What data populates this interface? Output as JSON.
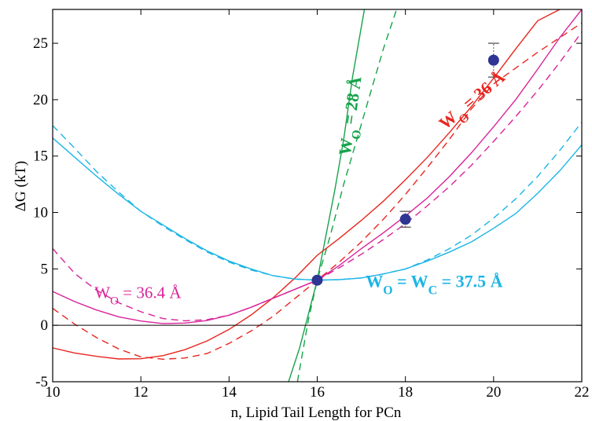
{
  "chart_data": {
    "type": "line",
    "xlabel": "n, Lipid Tail Length for PCn",
    "ylabel": "ΔG  (kT)",
    "xlim": [
      10,
      22
    ],
    "ylim": [
      -5,
      28
    ],
    "xticks": [
      10,
      12,
      14,
      16,
      18,
      20,
      22
    ],
    "yticks": [
      -5,
      0,
      5,
      10,
      15,
      20,
      25
    ],
    "grid": false,
    "reference_line_y": 0,
    "colors": {
      "green": "#16a34a",
      "red": "#e8261f",
      "magenta": "#d9239a",
      "cyan": "#1bb5e6",
      "points": "#2e3593",
      "errorbar": "#555555"
    },
    "series": [
      {
        "color": "green",
        "solid": {
          "x": [
            15.35,
            15.6,
            15.8,
            16.0,
            16.2,
            16.4,
            16.6,
            16.8,
            17.07
          ],
          "y": [
            -5.0,
            -2.0,
            1.0,
            4.0,
            8.0,
            12.0,
            16.5,
            22.0,
            28.0
          ]
        },
        "dashed": {
          "x": [
            15.55,
            15.8,
            16.0,
            16.3,
            16.6,
            16.9,
            17.2,
            17.5,
            17.8
          ],
          "y": [
            -5.0,
            0.5,
            4.0,
            8.0,
            12.5,
            16.5,
            20.5,
            24.5,
            28.0
          ]
        }
      },
      {
        "color": "red",
        "solid": {
          "x": [
            10,
            10.5,
            11,
            11.5,
            12,
            12.5,
            13,
            13.5,
            14,
            14.5,
            15,
            15.5,
            16,
            16.5,
            17,
            17.5,
            18,
            18.5,
            19,
            19.5,
            20,
            20.5,
            21,
            21.5
          ],
          "y": [
            -2.0,
            -2.45,
            -2.75,
            -2.98,
            -2.96,
            -2.69,
            -2.16,
            -1.39,
            -0.36,
            0.92,
            2.44,
            4.21,
            6.21,
            7.7,
            9.3,
            11.0,
            12.9,
            14.9,
            17.1,
            19.4,
            21.9,
            24.5,
            27.0,
            28.0
          ]
        },
        "dashed": {
          "x": [
            10,
            10.5,
            11,
            11.5,
            12,
            12.5,
            13,
            13.5,
            14,
            14.5,
            15,
            15.5,
            16,
            16.5,
            17,
            17.5,
            18,
            18.5,
            19,
            19.5,
            20,
            20.5,
            21,
            21.5,
            22
          ],
          "y": [
            1.5,
            0.1,
            -1.1,
            -2.1,
            -2.8,
            -3.0,
            -2.9,
            -2.5,
            -1.6,
            -0.5,
            0.8,
            2.4,
            4.0,
            5.6,
            7.4,
            9.4,
            11.6,
            14.0,
            16.5,
            19.2,
            21.4,
            22.8,
            24.2,
            25.5,
            26.8
          ]
        }
      },
      {
        "color": "magenta",
        "solid": {
          "x": [
            10,
            10.5,
            11,
            11.5,
            12,
            12.5,
            13,
            13.5,
            14,
            14.5,
            15,
            15.5,
            16,
            16.5,
            17,
            17.5,
            18,
            18.5,
            19,
            19.5,
            20,
            20.5,
            21,
            21.5,
            22
          ],
          "y": [
            3.0,
            2.1,
            1.35,
            0.75,
            0.38,
            0.16,
            0.2,
            0.42,
            0.9,
            1.6,
            2.4,
            3.2,
            4.0,
            5.3,
            6.8,
            8.2,
            9.7,
            11.3,
            13.2,
            15.3,
            17.6,
            20.0,
            22.7,
            25.5,
            28.0
          ]
        },
        "dashed": {
          "x": [
            10,
            10.5,
            11,
            11.5,
            12,
            12.5,
            13,
            13.5,
            14,
            14.5,
            15,
            15.5,
            16,
            16.5,
            17,
            17.5,
            18,
            18.5,
            19,
            19.5,
            20,
            20.5,
            21,
            21.5,
            22
          ],
          "y": [
            6.8,
            4.6,
            3.1,
            2.0,
            1.2,
            0.6,
            0.4,
            0.5,
            0.9,
            1.6,
            2.4,
            3.2,
            4.0,
            5.1,
            6.3,
            7.6,
            9.0,
            10.6,
            12.3,
            14.2,
            16.3,
            18.5,
            20.8,
            23.3,
            26.0
          ]
        }
      },
      {
        "color": "cyan",
        "solid": {
          "x": [
            10,
            10.5,
            11,
            11.5,
            12,
            12.5,
            13,
            13.5,
            14,
            14.5,
            15,
            15.5,
            16,
            16.5,
            17,
            17.5,
            18,
            18.5,
            19,
            19.5,
            20,
            20.5,
            21,
            21.5,
            22
          ],
          "y": [
            16.6,
            14.9,
            13.2,
            11.6,
            10.1,
            8.9,
            7.7,
            6.6,
            5.7,
            5.0,
            4.4,
            4.1,
            4.0,
            4.05,
            4.2,
            4.55,
            5.0,
            5.7,
            6.5,
            7.4,
            8.6,
            9.9,
            11.7,
            13.7,
            16.0
          ]
        },
        "dashed": {
          "x": [
            10,
            10.5,
            11,
            11.5,
            12,
            12.5,
            13,
            13.5,
            14,
            14.5,
            15,
            15.5,
            16,
            16.5,
            17,
            17.5,
            18,
            18.5,
            19,
            19.5,
            20,
            20.5,
            21,
            21.5,
            22
          ],
          "y": [
            17.7,
            15.7,
            13.6,
            11.8,
            10.1,
            8.8,
            7.6,
            6.5,
            5.6,
            4.9,
            4.4,
            4.1,
            4.0,
            4.05,
            4.2,
            4.55,
            5.0,
            5.8,
            6.8,
            8.0,
            9.5,
            11.2,
            13.2,
            15.5,
            18.0
          ]
        }
      }
    ],
    "points": [
      {
        "x": 16,
        "y": 4.0,
        "err_low": 4.0,
        "err_high": 4.0
      },
      {
        "x": 18,
        "y": 9.4,
        "err_low": 8.7,
        "err_high": 10.1
      },
      {
        "x": 20,
        "y": 23.5,
        "err_low": 22.0,
        "err_high": 25.0
      }
    ],
    "annotations": [
      {
        "color": "green",
        "main": "W",
        "sub": "O",
        "rest": " = 28 Å",
        "bold": true,
        "x": 16.75,
        "y": 15.0,
        "rotate": -82
      },
      {
        "color": "red",
        "main": "W",
        "sub": "O",
        "rest": " = 36 Å",
        "bold": true,
        "x": 18.9,
        "y": 17.3,
        "rotate": -40
      },
      {
        "color": "magenta",
        "main": "W",
        "sub": "O",
        "rest": " = 36.4 Å",
        "bold": false,
        "x": 10.95,
        "y": 2.4,
        "rotate": 0
      },
      {
        "color": "cyan",
        "main": "W",
        "sub": "O",
        "rest": " = W",
        "sub2": "C",
        "rest2": " = 37.5 Å",
        "bold": true,
        "x": 17.1,
        "y": 3.4,
        "rotate": 0
      }
    ]
  }
}
